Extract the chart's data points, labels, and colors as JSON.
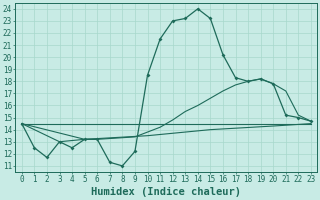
{
  "xlabel": "Humidex (Indice chaleur)",
  "bg_color": "#c8ebe5",
  "line_color": "#1e6b5a",
  "grid_color": "#a8d8cc",
  "xlim": [
    -0.5,
    23.5
  ],
  "ylim": [
    10.5,
    24.5
  ],
  "xticks": [
    0,
    1,
    2,
    3,
    4,
    5,
    6,
    7,
    8,
    9,
    10,
    11,
    12,
    13,
    14,
    15,
    16,
    17,
    18,
    19,
    20,
    21,
    22,
    23
  ],
  "yticks": [
    11,
    12,
    13,
    14,
    15,
    16,
    17,
    18,
    19,
    20,
    21,
    22,
    23,
    24
  ],
  "line1_x": [
    0,
    1,
    2,
    3,
    4,
    5,
    6,
    7,
    8,
    9,
    10,
    11,
    12,
    13,
    14,
    15,
    16,
    17,
    18,
    19,
    20,
    21,
    22,
    23
  ],
  "line1_y": [
    14.5,
    12.5,
    11.7,
    13.0,
    12.5,
    13.2,
    13.2,
    11.3,
    11.0,
    12.2,
    18.5,
    21.5,
    23.0,
    23.2,
    24.0,
    23.2,
    20.2,
    18.3,
    18.0,
    18.2,
    17.8,
    15.2,
    15.0,
    14.7
  ],
  "line2_x": [
    0,
    23
  ],
  "line2_y": [
    14.5,
    14.5
  ],
  "line3_x": [
    0,
    3,
    5,
    6,
    9,
    10,
    11,
    12,
    13,
    14,
    15,
    16,
    17,
    18,
    19,
    20,
    21,
    22,
    23
  ],
  "line3_y": [
    14.5,
    13.0,
    13.2,
    13.2,
    13.4,
    13.8,
    14.2,
    14.8,
    15.5,
    16.0,
    16.6,
    17.2,
    17.7,
    18.0,
    18.2,
    17.8,
    17.2,
    15.2,
    14.7
  ],
  "line4_x": [
    0,
    5,
    10,
    15,
    20,
    23
  ],
  "line4_y": [
    14.5,
    13.2,
    13.5,
    14.0,
    14.3,
    14.5
  ],
  "fontsize_label": 7.5,
  "fontsize_tick": 5.5
}
